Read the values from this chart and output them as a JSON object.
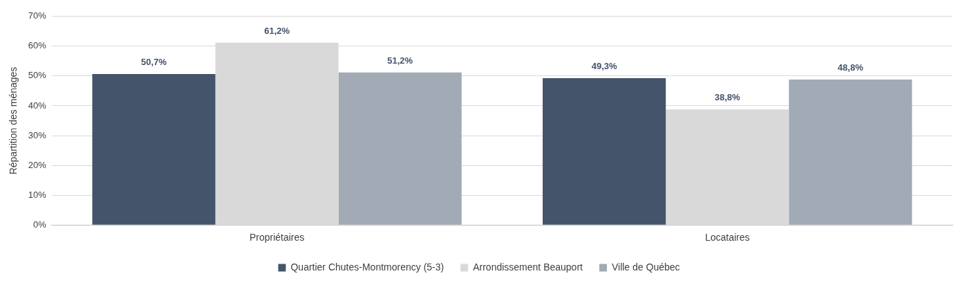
{
  "chart_data": {
    "type": "bar",
    "ylabel": "Répartition des ménages",
    "categories": [
      "Propriétaires",
      "Locataires"
    ],
    "series": [
      {
        "name": "Quartier Chutes-Montmorency (5-3)",
        "color": "#44546a",
        "values": [
          50.7,
          49.3
        ],
        "value_labels": [
          "50,7%",
          "49,3%"
        ]
      },
      {
        "name": "Arrondissement Beauport",
        "color": "#d9d9d9",
        "values": [
          61.2,
          38.8
        ],
        "value_labels": [
          "61,2%",
          "38,8%"
        ]
      },
      {
        "name": "Ville de Québec",
        "color": "#a2aab5",
        "values": [
          51.2,
          48.8
        ],
        "value_labels": [
          "51,2%",
          "48,8%"
        ]
      }
    ],
    "ylim": [
      0,
      70
    ],
    "yticks": [
      {
        "value": 0,
        "label": "0%"
      },
      {
        "value": 10,
        "label": "10%"
      },
      {
        "value": 20,
        "label": "20%"
      },
      {
        "value": 30,
        "label": "30%"
      },
      {
        "value": 40,
        "label": "40%"
      },
      {
        "value": 50,
        "label": "50%"
      },
      {
        "value": 60,
        "label": "60%"
      },
      {
        "value": 70,
        "label": "70%"
      }
    ],
    "grid": "y",
    "legend": "bottom"
  }
}
